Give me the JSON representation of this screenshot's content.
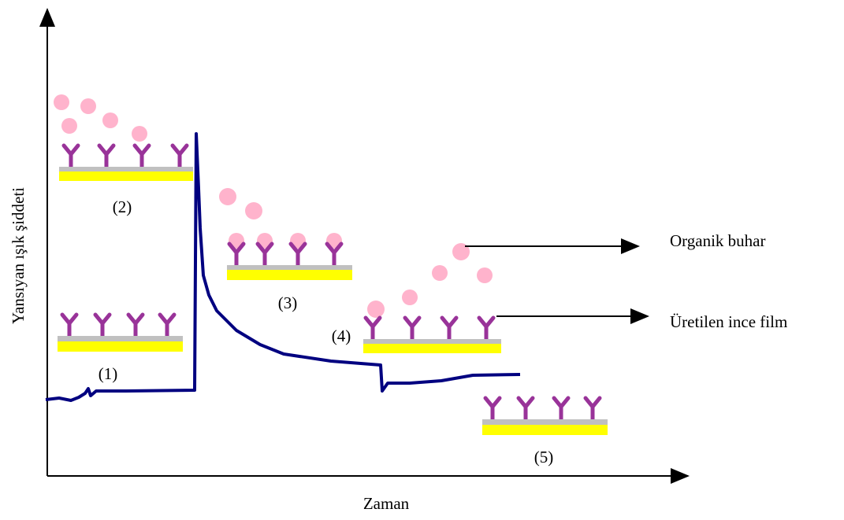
{
  "axes": {
    "y_label": "Yansıyan ışık şiddeti",
    "x_label": "Zaman"
  },
  "stages": [
    "(1)",
    "(2)",
    "(3)",
    "(4)",
    "(5)"
  ],
  "annotations": [
    "Organik buhar",
    "Üretilen ince film"
  ]
}
